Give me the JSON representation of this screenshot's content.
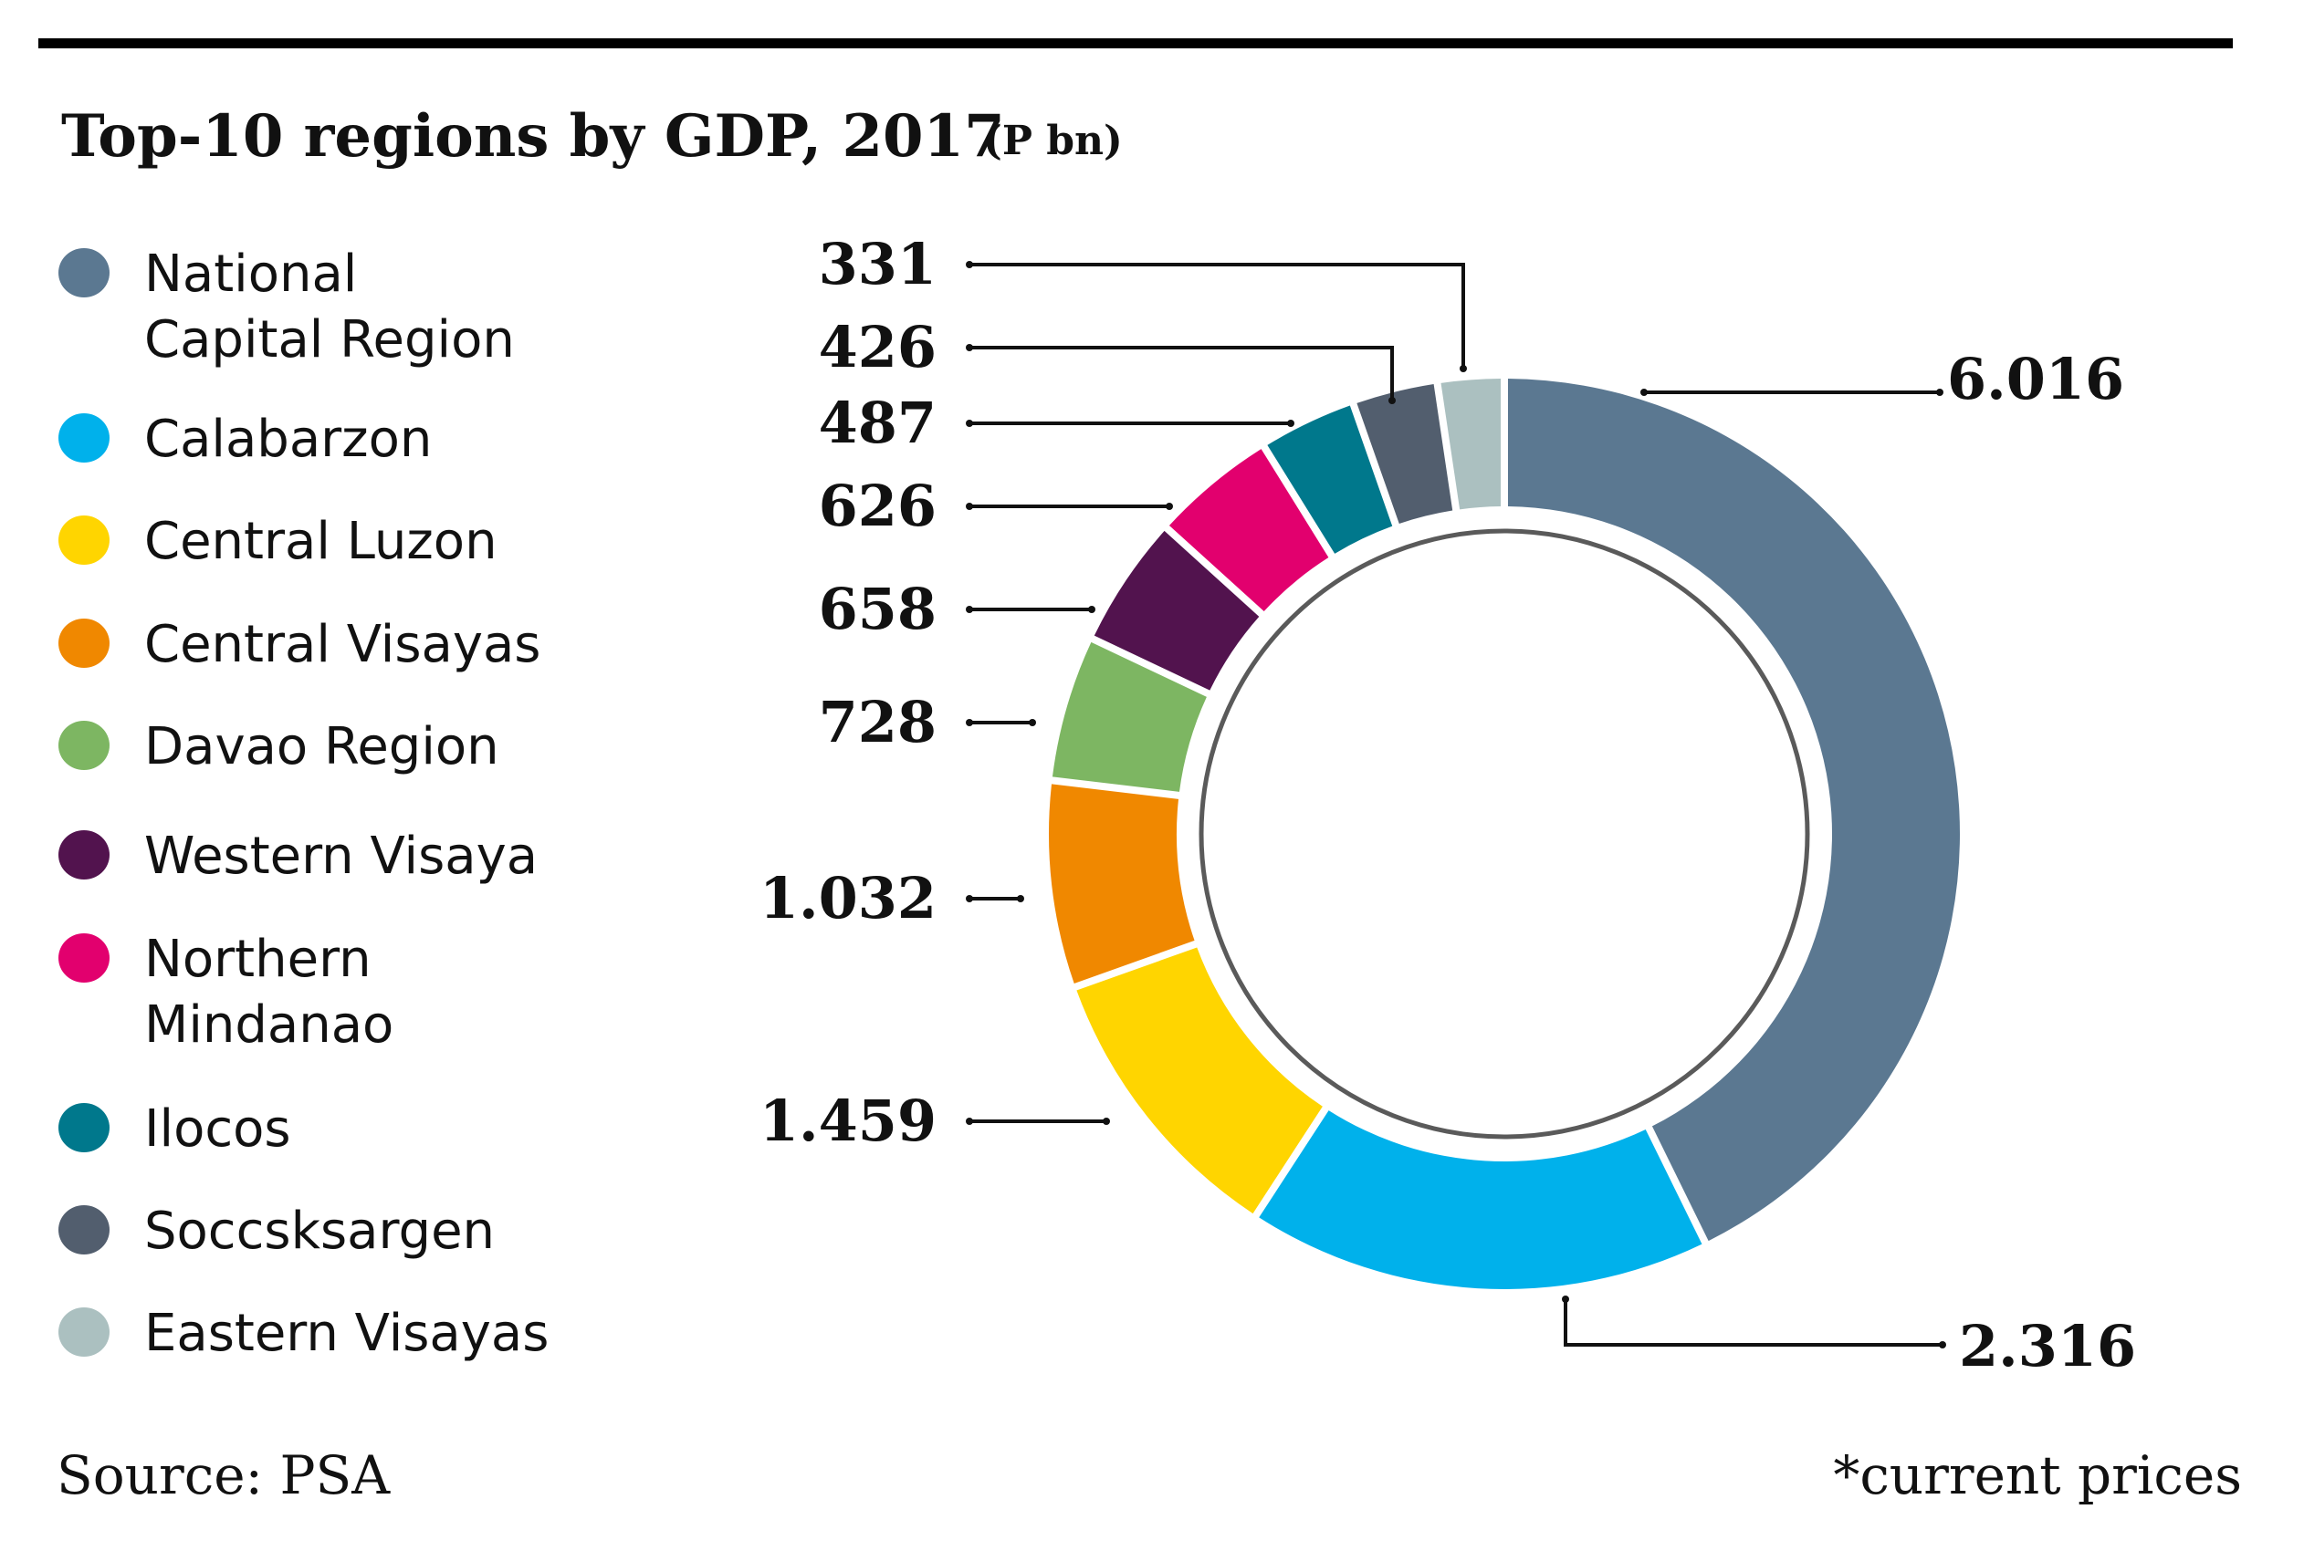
{
  "chart_data": {
    "type": "pie",
    "variant": "donut",
    "title": "Top-10 regions by GDP, 2017",
    "title_unit": "(P bn)",
    "source": "Source: PSA",
    "footnote": "*current prices",
    "legend_position": "left",
    "start": "top",
    "direction": "clockwise",
    "slices": [
      {
        "name": "National Capital Region",
        "legend_lines": [
          "National",
          "Capital Region"
        ],
        "value": 6016,
        "label": "6.016",
        "color": "#5B7891"
      },
      {
        "name": "Calabarzon",
        "legend_lines": [
          "Calabarzon"
        ],
        "value": 2316,
        "label": "2.316",
        "color": "#00B1EB"
      },
      {
        "name": "Central Luzon",
        "legend_lines": [
          "Central Luzon"
        ],
        "value": 1459,
        "label": "1.459",
        "color": "#FFD500"
      },
      {
        "name": "Central Visayas",
        "legend_lines": [
          "Central Visayas"
        ],
        "value": 1032,
        "label": "1.032",
        "color": "#F08800"
      },
      {
        "name": "Davao Region",
        "legend_lines": [
          "Davao Region"
        ],
        "value": 728,
        "label": "728",
        "color": "#7DB662"
      },
      {
        "name": "Western Visaya",
        "legend_lines": [
          "Western Visaya"
        ],
        "value": 658,
        "label": "658",
        "color": "#52134E"
      },
      {
        "name": "Northern Mindanao",
        "legend_lines": [
          "Northern",
          "Mindanao"
        ],
        "value": 626,
        "label": "626",
        "color": "#E2006E"
      },
      {
        "name": "Ilocos",
        "legend_lines": [
          "Ilocos"
        ],
        "value": 487,
        "label": "487",
        "color": "#00788C"
      },
      {
        "name": "Soccsksargen",
        "legend_lines": [
          "Soccsksargen"
        ],
        "value": 426,
        "label": "426",
        "color": "#525E6E"
      },
      {
        "name": "Eastern Visayas",
        "legend_lines": [
          "Eastern Visayas"
        ],
        "value": 331,
        "label": "331",
        "color": "#ABC0C0"
      }
    ],
    "value_units": "P bn",
    "ring_color": "#5a5a5a",
    "rule_color": "#000000"
  }
}
